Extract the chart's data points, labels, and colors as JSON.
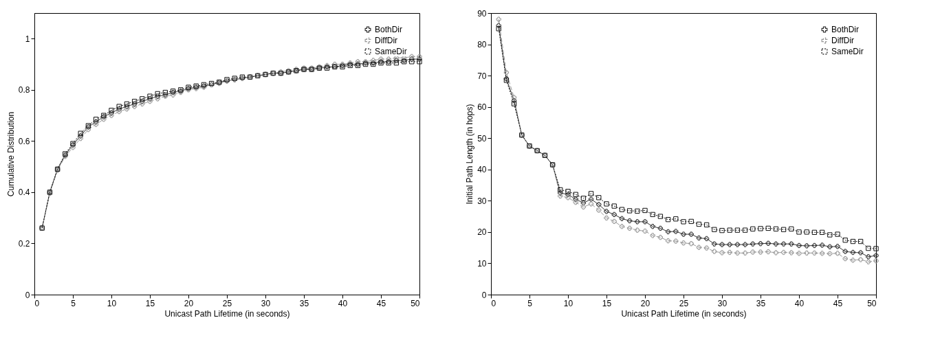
{
  "chart_data": [
    {
      "type": "line",
      "xlabel": "Unicast Path Lifetime (in seconds)",
      "ylabel": "Cumulative Distribution",
      "xlim": [
        0,
        50
      ],
      "xticks": [
        0,
        5,
        10,
        15,
        20,
        25,
        30,
        35,
        40,
        45,
        50
      ],
      "ylim": [
        0,
        1.1
      ],
      "yticks": [
        0,
        0.2,
        0.4,
        0.6,
        0.8,
        1
      ],
      "grid": false,
      "legend": "top right",
      "x": [
        1,
        2,
        3,
        4,
        5,
        6,
        7,
        8,
        9,
        10,
        11,
        12,
        13,
        14,
        15,
        16,
        17,
        18,
        19,
        20,
        21,
        22,
        23,
        24,
        25,
        26,
        27,
        28,
        29,
        30,
        31,
        32,
        33,
        34,
        35,
        36,
        37,
        38,
        39,
        40,
        41,
        42,
        43,
        44,
        45,
        46,
        47,
        48,
        49,
        50
      ],
      "series": [
        {
          "name": "BothDir",
          "color": "#333333",
          "marker": "cross",
          "line_style": "solid",
          "values": [
            0.26,
            0.4,
            0.49,
            0.545,
            0.585,
            0.62,
            0.655,
            0.675,
            0.695,
            0.71,
            0.725,
            0.735,
            0.745,
            0.755,
            0.765,
            0.775,
            0.78,
            0.79,
            0.795,
            0.805,
            0.81,
            0.815,
            0.82,
            0.83,
            0.835,
            0.84,
            0.845,
            0.85,
            0.855,
            0.86,
            0.865,
            0.865,
            0.87,
            0.875,
            0.88,
            0.88,
            0.885,
            0.89,
            0.89,
            0.895,
            0.9,
            0.9,
            0.905,
            0.905,
            0.91,
            0.91,
            0.915,
            0.915,
            0.92,
            0.92
          ]
        },
        {
          "name": "DiffDir",
          "color": "#999999",
          "marker": "cross",
          "line_style": "dashed",
          "values": [
            0.26,
            0.395,
            0.485,
            0.54,
            0.575,
            0.61,
            0.645,
            0.665,
            0.685,
            0.7,
            0.715,
            0.725,
            0.735,
            0.745,
            0.755,
            0.765,
            0.775,
            0.78,
            0.79,
            0.8,
            0.805,
            0.81,
            0.82,
            0.825,
            0.835,
            0.84,
            0.845,
            0.85,
            0.855,
            0.86,
            0.865,
            0.87,
            0.875,
            0.88,
            0.885,
            0.885,
            0.89,
            0.895,
            0.9,
            0.9,
            0.905,
            0.91,
            0.91,
            0.915,
            0.92,
            0.92,
            0.925,
            0.925,
            0.93,
            0.93
          ]
        },
        {
          "name": "SameDir",
          "color": "#111111",
          "marker": "square",
          "line_style": "dotted",
          "values": [
            0.26,
            0.4,
            0.49,
            0.55,
            0.59,
            0.63,
            0.66,
            0.685,
            0.7,
            0.72,
            0.735,
            0.745,
            0.755,
            0.765,
            0.775,
            0.785,
            0.79,
            0.795,
            0.8,
            0.81,
            0.815,
            0.82,
            0.825,
            0.83,
            0.84,
            0.845,
            0.85,
            0.85,
            0.855,
            0.86,
            0.865,
            0.865,
            0.87,
            0.875,
            0.88,
            0.88,
            0.885,
            0.885,
            0.89,
            0.89,
            0.895,
            0.895,
            0.9,
            0.9,
            0.905,
            0.905,
            0.905,
            0.91,
            0.91,
            0.91
          ]
        }
      ]
    },
    {
      "type": "line",
      "xlabel": "Unicast Path Lifetime (in seconds)",
      "ylabel": "Initial Path Length (in hops)",
      "xlim": [
        0,
        50
      ],
      "xticks": [
        0,
        5,
        10,
        15,
        20,
        25,
        30,
        35,
        40,
        45,
        50
      ],
      "ylim": [
        0,
        90
      ],
      "yticks": [
        0,
        10,
        20,
        30,
        40,
        50,
        60,
        70,
        80,
        90
      ],
      "grid": false,
      "legend": "top right",
      "x": [
        1,
        2,
        3,
        4,
        5,
        6,
        7,
        8,
        9,
        10,
        11,
        12,
        13,
        14,
        15,
        16,
        17,
        18,
        19,
        20,
        21,
        22,
        23,
        24,
        25,
        26,
        27,
        28,
        29,
        30,
        31,
        32,
        33,
        34,
        35,
        36,
        37,
        38,
        39,
        40,
        41,
        42,
        43,
        44,
        45,
        46,
        47,
        48,
        49,
        50
      ],
      "series": [
        {
          "name": "BothDir",
          "color": "#333333",
          "marker": "cross",
          "line_style": "solid",
          "values": [
            86,
            69,
            62,
            51,
            47.5,
            46,
            44.5,
            41.5,
            32.5,
            32,
            30.5,
            29.3,
            30.5,
            28.8,
            26.6,
            25.6,
            24.3,
            23.6,
            23.3,
            23.3,
            21.8,
            21.2,
            20.1,
            20.2,
            19.3,
            19.3,
            18.1,
            17.9,
            16.2,
            16,
            16,
            16,
            16,
            16.2,
            16.3,
            16.4,
            16.2,
            16.2,
            16.2,
            15.7,
            15.6,
            15.7,
            15.8,
            15.3,
            15.4,
            13.8,
            13.5,
            13.4,
            12.1,
            12.5
          ]
        },
        {
          "name": "DiffDir",
          "color": "#999999",
          "marker": "cross",
          "line_style": "dashed",
          "values": [
            88,
            71,
            63,
            51,
            47.5,
            46,
            44.5,
            41.5,
            31.5,
            31,
            29.5,
            28,
            29,
            27,
            24.5,
            23.4,
            21.8,
            21.2,
            20.6,
            20.3,
            18.9,
            18.3,
            17.2,
            17.1,
            16.5,
            16.3,
            15.1,
            14.9,
            13.8,
            13.4,
            13.5,
            13.3,
            13.3,
            13.6,
            13.6,
            13.7,
            13.4,
            13.5,
            13.4,
            13.2,
            13.3,
            13.3,
            13.2,
            13.1,
            13.2,
            11.5,
            11,
            11.2,
            10.5,
            10.8
          ]
        },
        {
          "name": "SameDir",
          "color": "#111111",
          "marker": "square",
          "line_style": "dotted",
          "values": [
            85,
            68.5,
            61,
            51,
            47.5,
            46,
            44.5,
            41.5,
            33.5,
            33,
            32,
            30.8,
            32.3,
            31,
            29,
            28.3,
            27.2,
            26.8,
            26.7,
            26.9,
            25.6,
            25,
            24,
            24.2,
            23.3,
            23.4,
            22.5,
            22.3,
            20.8,
            20.5,
            20.6,
            20.6,
            20.6,
            21,
            21.1,
            21.2,
            21,
            20.8,
            21,
            20,
            20,
            19.9,
            19.9,
            19.1,
            19.3,
            17.4,
            17,
            17,
            14.8,
            14.7
          ]
        }
      ]
    }
  ]
}
